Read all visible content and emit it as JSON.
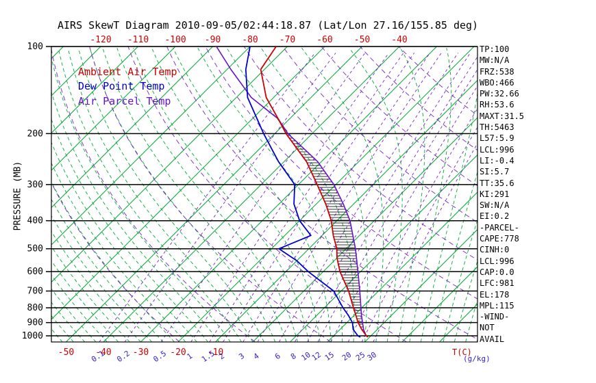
{
  "title": "AIRS SkewT Diagram 2010-09-05/02:44:18.87 (Lat/Lon 27.16/155.85 deg)",
  "y_axis_label": "PRESSURE (MB)",
  "bottom_units": {
    "temp": "T(C)",
    "mixing": "(g/kg)"
  },
  "colors": {
    "ambient": "#cc0000",
    "dew_point": "#0000cc",
    "parcel": "#6611cc",
    "isotherm": "#00aa33",
    "moist_adiabat": "#00aa33",
    "dry_adiabat": "#7722cc",
    "mixing_ratio": "#7722cc",
    "mixing_label": "#3322cc",
    "temp_label": "#cc0000"
  },
  "legend": {
    "items": [
      {
        "label": "Ambient Air Temp",
        "color_key": "ambient"
      },
      {
        "label": "Dew Point Temp",
        "color_key": "dew_point"
      },
      {
        "label": "Air Parcel Temp",
        "color_key": "parcel"
      }
    ]
  },
  "stats_panel": {
    "lines": [
      "TP:100",
      "MW:N/A",
      "FRZ:538",
      "WBO:466",
      "PW:32.66",
      "RH:53.6",
      "MAXT:31.5",
      "TH:5463",
      "L57:5.9",
      "LCL:996",
      "LI:-0.4",
      "SI:5.7",
      "TT:35.6",
      "KI:291",
      "SW:N/A",
      "EI:0.2",
      "-PARCEL-",
      "CAPE:778",
      "CINH:0",
      "LCL:996",
      "CAP:0.0",
      "LFC:981",
      "EL:178",
      "MPL:115",
      "-WIND-",
      "NOT",
      "AVAIL"
    ]
  },
  "chart_data": {
    "type": "line",
    "diagram": "skew-t-log-p",
    "title": "AIRS SkewT Diagram 2010-09-05/02:44:18.87 (Lat/Lon 27.16/155.85 deg)",
    "x_axis": {
      "label": "T(C)",
      "top_tick_labels_c": [
        -120,
        -110,
        -100,
        -90,
        -80,
        -70,
        -60,
        -50,
        -40
      ],
      "bottom_tick_labels_c": [
        -50,
        -40,
        -30,
        -20,
        -10
      ]
    },
    "y_axis": {
      "label": "PRESSURE (MB)",
      "scale": "log",
      "range_mb": [
        100,
        1050
      ],
      "ticks_mb": [
        100,
        200,
        300,
        400,
        500,
        600,
        700,
        800,
        900,
        1000
      ]
    },
    "mixing_ratio_labels_g_kg": [
      0.1,
      0.2,
      0.5,
      1,
      1.5,
      2,
      3,
      4,
      6,
      8,
      10,
      12,
      15,
      20,
      25,
      30
    ],
    "isotherms_c": {
      "min": -160,
      "max": 60,
      "step": 10
    },
    "dry_adiabats_theta_k": {
      "min": 250,
      "max": 450,
      "step": 20
    },
    "moist_adiabats_c": {
      "min": -51,
      "max": 60,
      "step": 3
    },
    "series": [
      {
        "name": "Ambient Air Temp",
        "color_key": "ambient",
        "points_p_t": [
          [
            1010,
            29.5
          ],
          [
            1000,
            28.8
          ],
          [
            950,
            25.8
          ],
          [
            900,
            23.0
          ],
          [
            850,
            20.5
          ],
          [
            800,
            17.8
          ],
          [
            700,
            12.0
          ],
          [
            600,
            4.5
          ],
          [
            538,
            0.0
          ],
          [
            500,
            -2.5
          ],
          [
            450,
            -7.0
          ],
          [
            400,
            -11.5
          ],
          [
            350,
            -17.5
          ],
          [
            300,
            -25.0
          ],
          [
            250,
            -34.0
          ],
          [
            200,
            -47.0
          ],
          [
            178,
            -53.0
          ],
          [
            150,
            -62.0
          ],
          [
            120,
            -71.0
          ],
          [
            100,
            -73.0
          ]
        ]
      },
      {
        "name": "Dew Point Temp",
        "color_key": "dew_point",
        "points_p_t": [
          [
            1010,
            27.5
          ],
          [
            1000,
            26.5
          ],
          [
            950,
            23.5
          ],
          [
            900,
            21.5
          ],
          [
            850,
            18.5
          ],
          [
            800,
            15.0
          ],
          [
            700,
            8.0
          ],
          [
            600,
            -4.0
          ],
          [
            550,
            -10.0
          ],
          [
            500,
            -18.0
          ],
          [
            450,
            -13.0
          ],
          [
            400,
            -20.0
          ],
          [
            350,
            -26.0
          ],
          [
            300,
            -31.0
          ],
          [
            250,
            -41.5
          ],
          [
            200,
            -53.0
          ],
          [
            150,
            -67.0
          ],
          [
            120,
            -75.0
          ],
          [
            100,
            -80.0
          ]
        ]
      },
      {
        "name": "Air Parcel Temp",
        "color_key": "parcel",
        "points_p_t": [
          [
            1010,
            29.5
          ],
          [
            996,
            28.5
          ],
          [
            950,
            26.3
          ],
          [
            900,
            24.2
          ],
          [
            850,
            22.0
          ],
          [
            800,
            19.8
          ],
          [
            700,
            15.0
          ],
          [
            600,
            9.3
          ],
          [
            500,
            2.5
          ],
          [
            400,
            -6.5
          ],
          [
            350,
            -12.8
          ],
          [
            300,
            -20.5
          ],
          [
            250,
            -31.0
          ],
          [
            200,
            -46.5
          ],
          [
            178,
            -53.0
          ],
          [
            150,
            -66.0
          ],
          [
            120,
            -79.0
          ],
          [
            100,
            -89.0
          ]
        ]
      }
    ],
    "cape_hatch": {
      "between": [
        "Air Parcel Temp",
        "Ambient Air Temp"
      ],
      "p_range_mb": [
        178,
        1000
      ]
    }
  }
}
